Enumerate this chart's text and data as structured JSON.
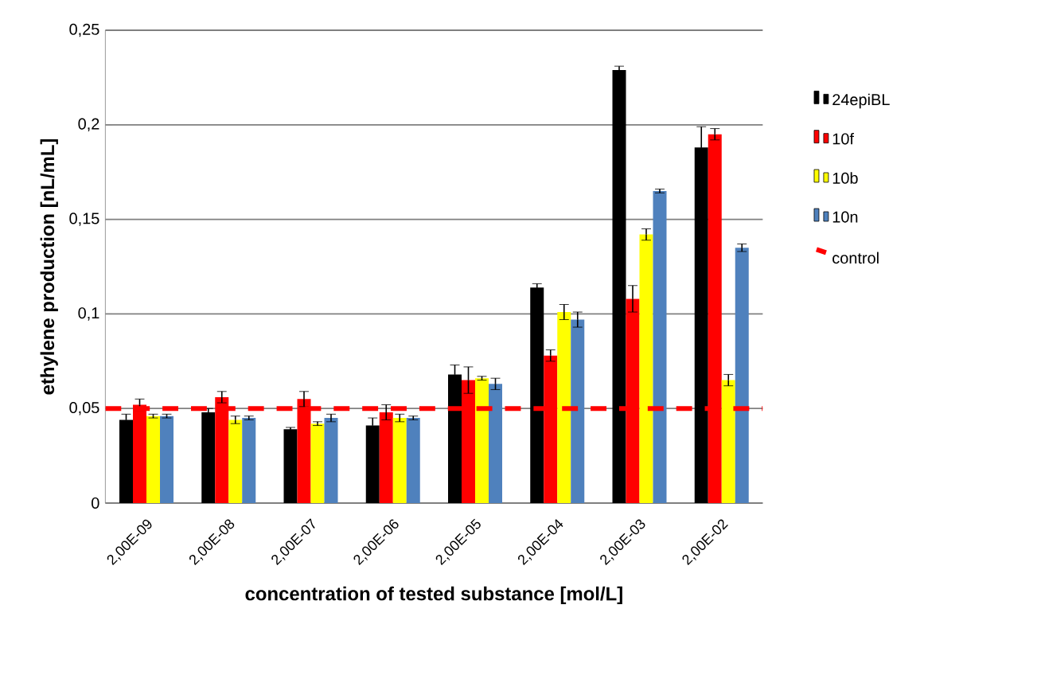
{
  "chart_data": {
    "type": "bar",
    "xlabel": "concentration of tested substance [mol/L]",
    "ylabel": "ethylene production [nL/mL]",
    "categories": [
      "2,00E-09",
      "2,00E-08",
      "2,00E-07",
      "2,00E-06",
      "2,00E-05",
      "2,00E-04",
      "2,00E-03",
      "2,00E-02"
    ],
    "series": [
      {
        "name": "24epiBL",
        "color": "#000000",
        "values": [
          0.044,
          0.048,
          0.039,
          0.041,
          0.068,
          0.114,
          0.229,
          0.188
        ],
        "errors": [
          0.003,
          0.002,
          0.001,
          0.004,
          0.005,
          0.002,
          0.002,
          0.011
        ]
      },
      {
        "name": "10f",
        "color": "#ff0000",
        "values": [
          0.052,
          0.056,
          0.055,
          0.048,
          0.065,
          0.078,
          0.108,
          0.195
        ],
        "errors": [
          0.003,
          0.003,
          0.004,
          0.004,
          0.007,
          0.003,
          0.007,
          0.003
        ]
      },
      {
        "name": "10b",
        "color": "#ffff00",
        "values": [
          0.046,
          0.044,
          0.042,
          0.045,
          0.066,
          0.101,
          0.142,
          0.065
        ],
        "errors": [
          0.001,
          0.002,
          0.001,
          0.002,
          0.001,
          0.004,
          0.003,
          0.003
        ]
      },
      {
        "name": "10n",
        "color": "#4f81bd",
        "values": [
          0.046,
          0.045,
          0.045,
          0.045,
          0.063,
          0.097,
          0.165,
          0.135
        ],
        "errors": [
          0.001,
          0.001,
          0.002,
          0.001,
          0.003,
          0.004,
          0.001,
          0.002
        ]
      }
    ],
    "ref_lines": [
      {
        "axis": "y",
        "value": 0.05,
        "label": "control",
        "color": "#ff0000",
        "line_style": "dashed"
      }
    ],
    "ylim": [
      0,
      0.25
    ],
    "yticks": [
      0,
      {
        "value": 0.05,
        "label": "0,05"
      },
      {
        "value": 0.1,
        "label": "0,1"
      },
      {
        "value": 0.15,
        "label": "0,15"
      },
      {
        "value": 0.2,
        "label": "0,2"
      },
      {
        "value": 0.25,
        "label": "0,25"
      }
    ],
    "grid": "y",
    "legend": "right"
  }
}
